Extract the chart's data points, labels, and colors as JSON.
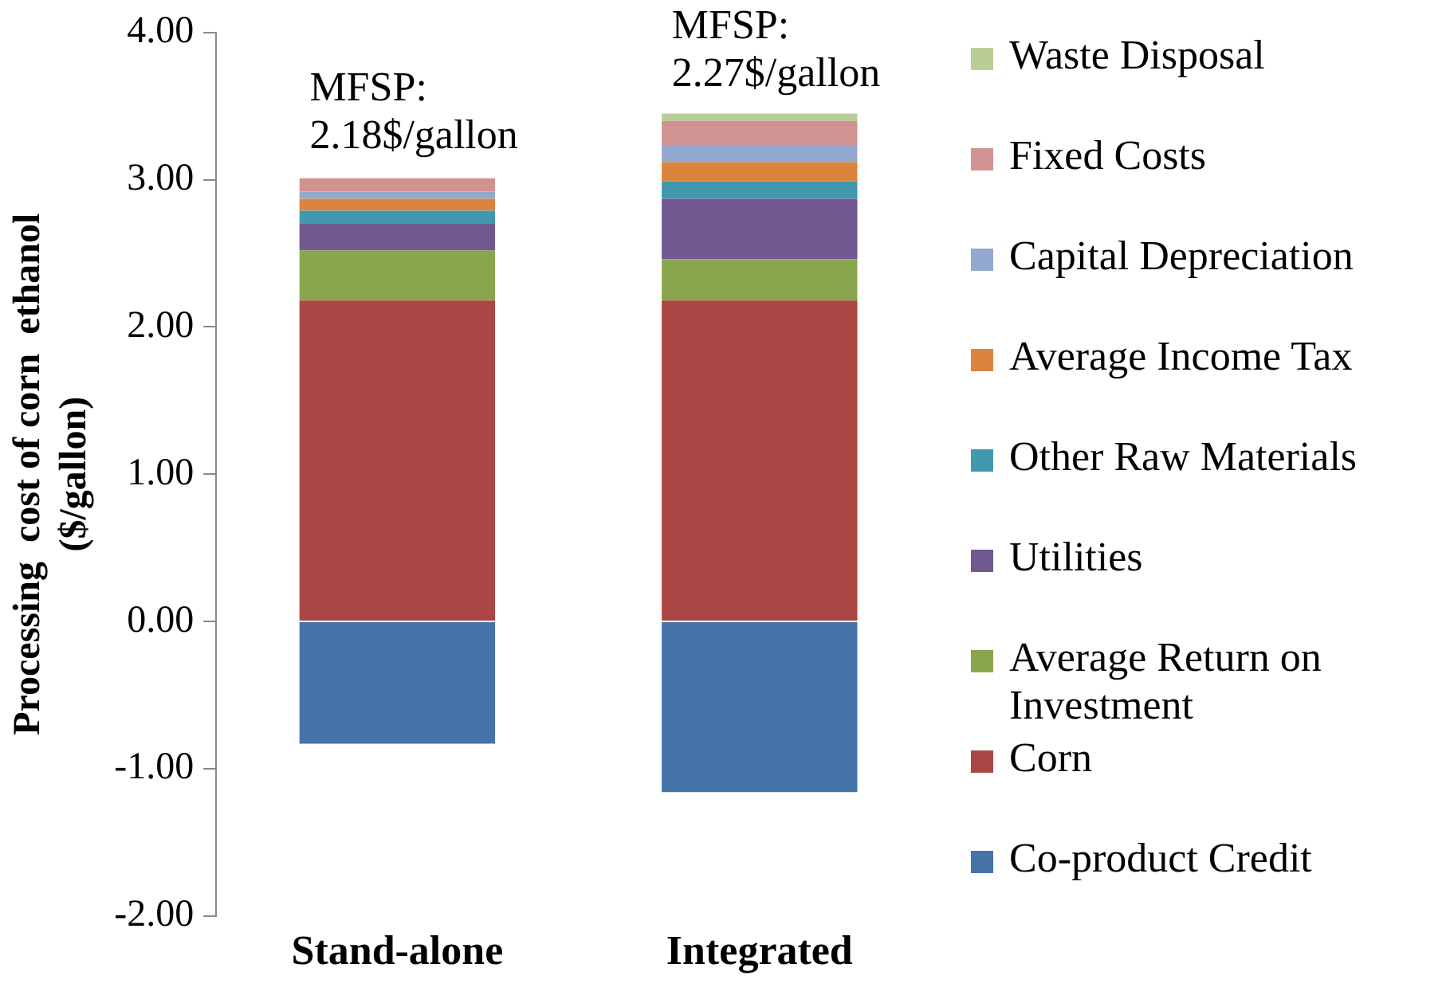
{
  "chart_data": {
    "type": "bar",
    "stacked": true,
    "ylabel": "Processing  cost of corn  ethanol\n($/gallon)",
    "categories": [
      "Stand-alone",
      "Integrated"
    ],
    "series": [
      {
        "name": "Co-product Credit",
        "color": "#4572a7",
        "values": [
          -0.83,
          -1.16
        ]
      },
      {
        "name": "Corn",
        "color": "#aa4643",
        "values": [
          2.18,
          2.18
        ]
      },
      {
        "name": "Average Return on Investment",
        "color": "#89a54e",
        "values": [
          0.34,
          0.28
        ]
      },
      {
        "name": "Utilities",
        "color": "#71588f",
        "values": [
          0.18,
          0.41
        ]
      },
      {
        "name": "Other Raw Materials",
        "color": "#4198af",
        "values": [
          0.09,
          0.12
        ]
      },
      {
        "name": "Average Income Tax",
        "color": "#db843d",
        "values": [
          0.08,
          0.13
        ]
      },
      {
        "name": "Capital Depreciation",
        "color": "#93a9cf",
        "values": [
          0.05,
          0.11
        ]
      },
      {
        "name": "Fixed Costs",
        "color": "#d19392",
        "values": [
          0.09,
          0.17
        ]
      },
      {
        "name": "Waste Disposal",
        "color": "#b9cd96",
        "values": [
          0,
          0.05
        ]
      }
    ],
    "ylim": [
      -2,
      4
    ],
    "yticks": [
      {
        "value": -2,
        "label": "-2.00"
      },
      {
        "value": -1,
        "label": "-1.00"
      },
      {
        "value": 0,
        "label": "0.00"
      },
      {
        "value": 1,
        "label": "1.00"
      },
      {
        "value": 2,
        "label": "2.00"
      },
      {
        "value": 3,
        "label": "3.00"
      },
      {
        "value": 4,
        "label": "4.00"
      }
    ],
    "grid": false,
    "legend": "right",
    "annotations": [
      {
        "text": "MFSP:\n2.18$/gallon",
        "x": "Stand-alone",
        "y": 3.02
      },
      {
        "text": "MFSP:\n2.27$/gallon",
        "x": "Integrated",
        "y": 3.44
      }
    ]
  }
}
